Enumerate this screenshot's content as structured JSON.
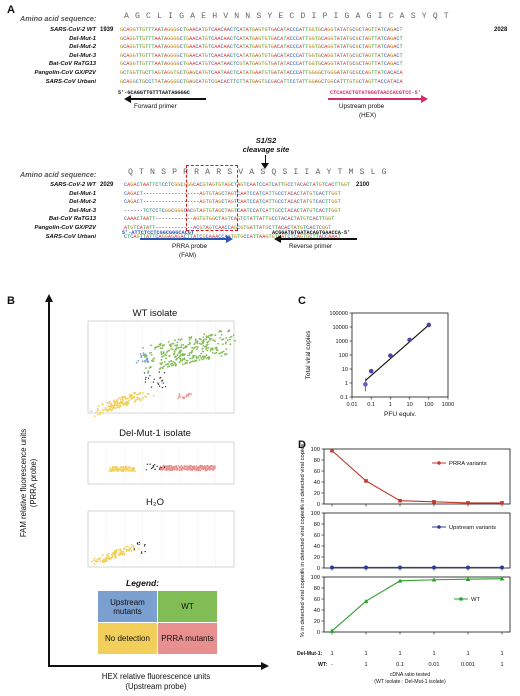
{
  "panel_a": {
    "label": "A",
    "aa_label_1": "Amino acid sequence:",
    "aa_seq_1": "A G C L I G A E H V N N S Y E C D I P I G A G I C A S Y Q T",
    "start_num_1": "1939",
    "end_num_1": "2028",
    "rows": [
      "SARS-CoV-2 WT",
      "Del-Mut-1",
      "Del-Mut-2",
      "Del-Mut-3",
      "Bat-CoV RaTG13",
      "Pangolin-CoV GX/P2V",
      "SARS-CoV Urbani"
    ],
    "nt_block_1": [
      "GCAGGTTGTTTAATAGGGGCTGAACATGTCAACAACTCATATGAGTGTGACATACCCATTGGTGCAGGTATATGCGCTAGTTATCAGACT",
      "GCAGGTTGTTTAATAGGGGCTGAACATGTCAACAACTCATATGAGTGTGACATACCCATTGGTGCAGGTATATGCGCTAGTTATCAGACT",
      "GCAGGTTGTTTAATAGGGGCTGAACATGTCAACAACTCATATGAGTGTGACATACCCATTGGTGCAGGTATATGCGCTAGTTATCAGACT",
      "GCAGGTTGTTTAATAGGGGCTGAACATGTCAACAACTCATATGAGTGTGACATACCCATTGGTGCAGGTATATGCGCTAGTTATCAGACT",
      "GCAGGTTGTTTAATAGGGGCTGAACATGTCAATAACTCGTATGAGTGTGATATACCCATTGGTGCAGGTATATGCGCTAGTTATCAGACT",
      "GCTGGTTGCTTAGTAGGTGCTGAGCATGTCAATAACTCATATGAATGTGATATACCCATTGGGGCTGGGATATGCGCCAGTTATCACACA",
      "GCAGGCTGCCTTATAGGGGCTGAGCATGTCGACACTTCTTATGAGTGCGACATTCCTATTGGAGCTGGCATTTGTGCTAGTTACCATACA"
    ],
    "forward_primer_seq": "5'-GCAGGTTGTTTAATAGGGGC",
    "forward_primer_label": "Forward primer",
    "upstream_probe_seq": "CTCACACTGTATGGGTAACCACGTCC-5'",
    "upstream_probe_label": "Upstream probe",
    "upstream_probe_dye": "(HEX)",
    "cleavage_title_1": "S1/S2",
    "cleavage_title_2": "cleavage site",
    "aa_label_2": "Amino acid sequence:",
    "aa_seq_2": "Q T N S P R R A R S V A S Q S I I A Y T M S L G",
    "start_num_2": "2029",
    "end_num_2": "2100",
    "nt_block_2": [
      "CAGACTAATTCTCCTCGGCGGGCACGTAGTGTAGCTAGTCAATCCATCATTGCCTACACTATGTCACTTGGT",
      "CAGACT------------------AGTGTAGCTAGTCAATCCATCATTGCCTACACTATGTCACTTGGT",
      "CAGACT------------------AGTGTAGCTAGTCAATCCATCATTGCCTACACTATGTCACTTGGT",
      "------TCTCCTCGGCGGGCACGTAGTGTAGCTAGTCAATCCATCATTGCCTACACTATGTCACTTGGT",
      "CAAACTAATT------------AGTGTGGCTAGTCAGTCTATTATTGCCTACACTATGTCACTTGGT",
      "ATGTCATATT------------ACGTAGTCAACCAGCGTGATTATGCTTACACTATGTCACTCGGT",
      "CTCAGTTATTCAGGAGAGACTTATCGCAAACCAATGTGCCATTAAGTGTGATCTCAGTGCTTACCAAAT"
    ],
    "prra_probe_seq": "5'-ATTCTCCTCGGCGGGCACGT",
    "prra_probe_label": "PRRA probe",
    "prra_probe_dye": "(FAM)",
    "reverse_primer_seq": "ACGGATGTGATACAGTGAACCA-5'",
    "reverse_primer_label": "Reverse primer"
  },
  "panel_b": {
    "label": "B",
    "y_axis_label_1": "FAM relative fluorescence units",
    "y_axis_label_2": "(PRRA probe)",
    "x_axis_label_1": "HEX relative fluorescence units",
    "x_axis_label_2": "(Upstream probe)",
    "plot_titles": [
      "WT isolate",
      "Del-Mut-1 isolate",
      "H₂O"
    ],
    "legend_title": "Legend:",
    "legend_cells": [
      "Upstream mutants",
      "WT",
      "No detection",
      "PRRA mutants"
    ],
    "colors": {
      "upstream": "#7b9fcf",
      "wt": "#82bc55",
      "none": "#f2cf5a",
      "prra": "#e8908f"
    }
  },
  "panel_c": {
    "label": "C",
    "chart_data": {
      "type": "scatter",
      "x": [
        0.05,
        0.1,
        1,
        10,
        100
      ],
      "y": [
        0.8,
        7,
        90,
        1200,
        14000
      ],
      "xlabel": "PFU equiv.",
      "ylabel": "Total viral copies",
      "xscale": "log",
      "yscale": "log",
      "xlim": [
        0.01,
        1000
      ],
      "ylim": [
        0.1,
        100000
      ],
      "xticks": [
        "0.01",
        "0.1",
        "1",
        "10",
        "100",
        "1000"
      ],
      "yticks": [
        "0.1",
        "1",
        "10",
        "100",
        "1000",
        "10000",
        "100000"
      ]
    }
  },
  "panel_d": {
    "label": "D",
    "chart_data": [
      {
        "type": "line",
        "series": [
          {
            "name": "PRRA variants",
            "color": "#c0392b",
            "values": [
              97,
              42,
              6,
              4,
              2,
              2
            ]
          }
        ],
        "ylabel": "% in detected viral copies",
        "ylim": [
          0,
          100
        ],
        "yticks": [
          "0",
          "20",
          "40",
          "60",
          "80",
          "100"
        ]
      },
      {
        "type": "line",
        "series": [
          {
            "name": "Upstream variants",
            "color": "#2c3e91",
            "values": [
              1,
              1,
              1,
              1,
              1,
              1
            ]
          }
        ],
        "ylabel": "% in detected viral copies",
        "ylim": [
          0,
          100
        ],
        "yticks": [
          "0",
          "20",
          "40",
          "60",
          "80",
          "100"
        ]
      },
      {
        "type": "line",
        "series": [
          {
            "name": "WT",
            "color": "#2ca02c",
            "values": [
              2,
              56,
              93,
              95,
              96,
              97
            ]
          }
        ],
        "ylabel": "% in detected viral copies",
        "ylim": [
          0,
          100
        ],
        "yticks": [
          "0",
          "20",
          "40",
          "60",
          "80",
          "100"
        ]
      }
    ],
    "del_mut_label": "Del-Mut-1:",
    "wt_label": "WT:",
    "del_mut_values": [
      "1",
      "1",
      "1",
      "1",
      "1",
      "1"
    ],
    "wt_values": [
      "-",
      "1",
      "0.1",
      "0.01",
      "0.001",
      "1"
    ],
    "x_label_1": "cDNA ratio tested",
    "x_label_2": "(WT isolate : Del-Mut-1 isolate)"
  }
}
